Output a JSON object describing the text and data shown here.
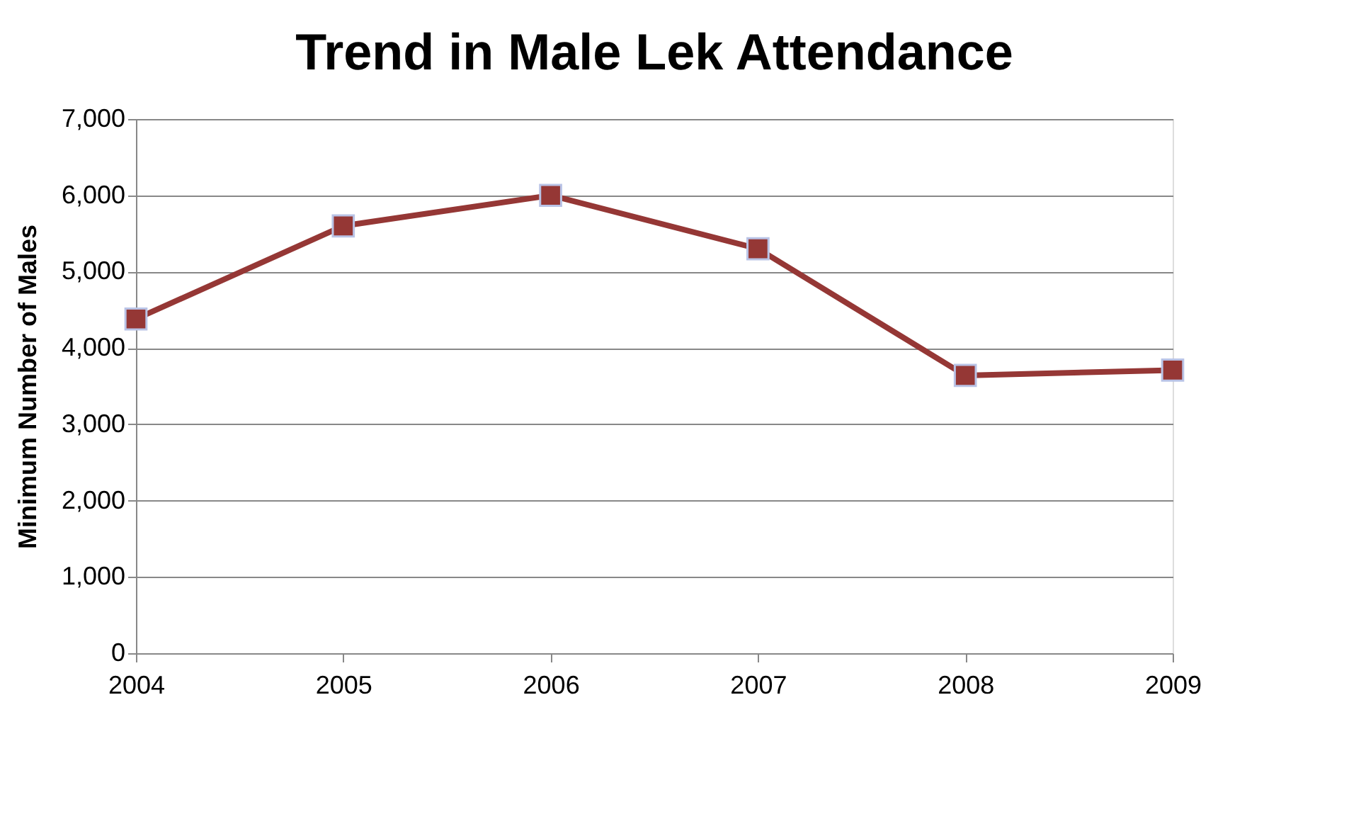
{
  "chart_data": {
    "type": "line",
    "title": "Trend in Male Lek Attendance",
    "ylabel": "Minimum Number of Males",
    "categories": [
      "2004",
      "2005",
      "2006",
      "2007",
      "2008",
      "2009"
    ],
    "series": [
      {
        "color": "#953735",
        "values": [
          4380,
          5600,
          6000,
          5300,
          3640,
          3710
        ]
      }
    ],
    "ylim": [
      0,
      7000
    ],
    "yticks": [
      {
        "value": 0,
        "label": "0"
      },
      {
        "value": 1000,
        "label": "1,000"
      },
      {
        "value": 2000,
        "label": "2,000"
      },
      {
        "value": 3000,
        "label": "3,000"
      },
      {
        "value": 4000,
        "label": "4,000"
      },
      {
        "value": 5000,
        "label": "5,000"
      },
      {
        "value": 6000,
        "label": "6,000"
      },
      {
        "value": 7000,
        "label": "7,000"
      }
    ],
    "grid": "y",
    "marker": "square",
    "line_style": "solid"
  }
}
